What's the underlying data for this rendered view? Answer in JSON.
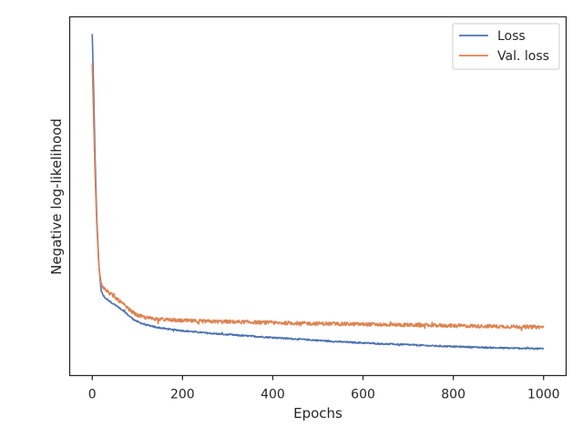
{
  "chart_data": {
    "type": "line",
    "title": "",
    "xlabel": "Epochs",
    "ylabel": "Negative log-likelihood",
    "xlim": [
      -50,
      1050
    ],
    "ylim": [
      0,
      1
    ],
    "x_ticks": [
      0,
      200,
      400,
      600,
      800,
      1000
    ],
    "x_tick_labels": [
      "0",
      "200",
      "400",
      "600",
      "800",
      "1000"
    ],
    "y_ticks_visible": false,
    "grid": false,
    "legend": {
      "placement": "top-right"
    },
    "series": [
      {
        "name": "Loss",
        "color": "#4c72b0",
        "points": [
          [
            0,
            0.952
          ],
          [
            3,
            0.8
          ],
          [
            6,
            0.62
          ],
          [
            10,
            0.44
          ],
          [
            15,
            0.3
          ],
          [
            20,
            0.235
          ],
          [
            25,
            0.222
          ],
          [
            30,
            0.215
          ],
          [
            40,
            0.206
          ],
          [
            50,
            0.197
          ],
          [
            60,
            0.189
          ],
          [
            70,
            0.18
          ],
          [
            80,
            0.168
          ],
          [
            90,
            0.158
          ],
          [
            100,
            0.15
          ],
          [
            120,
            0.141
          ],
          [
            140,
            0.135
          ],
          [
            160,
            0.131
          ],
          [
            180,
            0.128
          ],
          [
            200,
            0.125
          ],
          [
            250,
            0.119
          ],
          [
            300,
            0.114
          ],
          [
            350,
            0.11
          ],
          [
            400,
            0.106
          ],
          [
            450,
            0.102
          ],
          [
            500,
            0.098
          ],
          [
            550,
            0.094
          ],
          [
            600,
            0.091
          ],
          [
            650,
            0.088
          ],
          [
            700,
            0.086
          ],
          [
            750,
            0.083
          ],
          [
            800,
            0.081
          ],
          [
            850,
            0.079
          ],
          [
            900,
            0.077
          ],
          [
            950,
            0.076
          ],
          [
            1000,
            0.075
          ]
        ],
        "noise": 0.002
      },
      {
        "name": "Val. loss",
        "color": "#dd8452",
        "points": [
          [
            0,
            0.87
          ],
          [
            3,
            0.72
          ],
          [
            6,
            0.57
          ],
          [
            10,
            0.42
          ],
          [
            15,
            0.3
          ],
          [
            20,
            0.255
          ],
          [
            25,
            0.245
          ],
          [
            30,
            0.238
          ],
          [
            40,
            0.228
          ],
          [
            50,
            0.218
          ],
          [
            60,
            0.208
          ],
          [
            70,
            0.197
          ],
          [
            80,
            0.186
          ],
          [
            90,
            0.176
          ],
          [
            100,
            0.168
          ],
          [
            120,
            0.161
          ],
          [
            140,
            0.158
          ],
          [
            160,
            0.156
          ],
          [
            180,
            0.154
          ],
          [
            200,
            0.153
          ],
          [
            250,
            0.151
          ],
          [
            300,
            0.15
          ],
          [
            350,
            0.149
          ],
          [
            400,
            0.147
          ],
          [
            450,
            0.146
          ],
          [
            500,
            0.145
          ],
          [
            550,
            0.144
          ],
          [
            600,
            0.143
          ],
          [
            650,
            0.142
          ],
          [
            700,
            0.141
          ],
          [
            750,
            0.14
          ],
          [
            800,
            0.139
          ],
          [
            850,
            0.138
          ],
          [
            900,
            0.137
          ],
          [
            950,
            0.136
          ],
          [
            1000,
            0.135
          ]
        ],
        "noise": 0.005
      }
    ]
  }
}
